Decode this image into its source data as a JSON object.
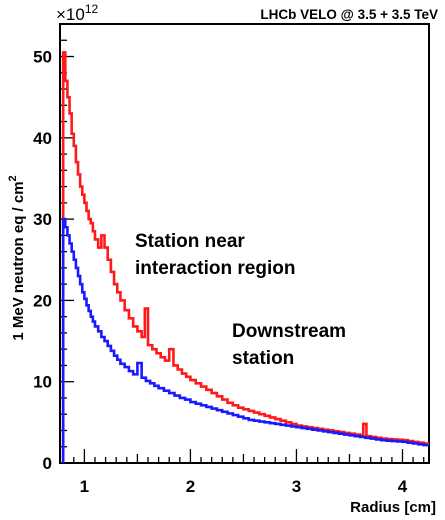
{
  "chart_data": {
    "type": "step-histogram",
    "title": "LHCb VELO @ 3.5 + 3.5 TeV",
    "xlabel": "Radius [cm]",
    "ylabel": "1 MeV neutron eq / cm",
    "ylabel_sup": "2",
    "y_multiplier_base": "×10",
    "y_multiplier_exp": "12",
    "xlim": [
      0.77,
      4.25
    ],
    "ylim": [
      0,
      54
    ],
    "x_ticks": [
      1,
      2,
      3,
      4
    ],
    "y_ticks": [
      0,
      10,
      20,
      30,
      40,
      50
    ],
    "x_tick_labels": [
      "1",
      "2",
      "3",
      "4"
    ],
    "y_tick_labels": [
      "0",
      "10",
      "20",
      "30",
      "40",
      "50"
    ],
    "grid": false,
    "series": [
      {
        "name": "Station near interaction region",
        "color": "#ff1a1a",
        "points": [
          [
            0.8,
            50.5
          ],
          [
            0.82,
            47
          ],
          [
            0.84,
            45
          ],
          [
            0.86,
            43
          ],
          [
            0.88,
            40.5
          ],
          [
            0.9,
            39
          ],
          [
            0.92,
            37
          ],
          [
            0.94,
            35.5
          ],
          [
            0.96,
            34
          ],
          [
            0.98,
            33
          ],
          [
            1.0,
            32
          ],
          [
            1.02,
            31
          ],
          [
            1.04,
            30
          ],
          [
            1.06,
            29.5
          ],
          [
            1.08,
            28.5
          ],
          [
            1.1,
            27.5
          ],
          [
            1.13,
            26.5
          ],
          [
            1.16,
            28
          ],
          [
            1.19,
            26.5
          ],
          [
            1.22,
            25
          ],
          [
            1.25,
            23.5
          ],
          [
            1.28,
            22
          ],
          [
            1.31,
            21
          ],
          [
            1.34,
            20
          ],
          [
            1.38,
            18.8
          ],
          [
            1.42,
            17.8
          ],
          [
            1.46,
            16.8
          ],
          [
            1.5,
            16.2
          ],
          [
            1.54,
            15.5
          ],
          [
            1.57,
            19
          ],
          [
            1.6,
            14.5
          ],
          [
            1.64,
            14
          ],
          [
            1.68,
            13.5
          ],
          [
            1.72,
            13
          ],
          [
            1.76,
            12.6
          ],
          [
            1.8,
            14
          ],
          [
            1.84,
            12
          ],
          [
            1.88,
            11.5
          ],
          [
            1.92,
            11
          ],
          [
            1.96,
            10.6
          ],
          [
            2.0,
            10.2
          ],
          [
            2.05,
            9.8
          ],
          [
            2.1,
            9.4
          ],
          [
            2.15,
            9
          ],
          [
            2.2,
            8.6
          ],
          [
            2.25,
            8.2
          ],
          [
            2.3,
            7.8
          ],
          [
            2.35,
            7.4
          ],
          [
            2.4,
            7.1
          ],
          [
            2.45,
            6.8
          ],
          [
            2.5,
            6.6
          ],
          [
            2.55,
            6.4
          ],
          [
            2.6,
            6.2
          ],
          [
            2.65,
            6
          ],
          [
            2.7,
            5.8
          ],
          [
            2.75,
            5.6
          ],
          [
            2.8,
            5.4
          ],
          [
            2.85,
            5.2
          ],
          [
            2.9,
            5
          ],
          [
            2.95,
            4.8
          ],
          [
            3.0,
            4.6
          ],
          [
            3.05,
            4.5
          ],
          [
            3.1,
            4.4
          ],
          [
            3.15,
            4.3
          ],
          [
            3.2,
            4.2
          ],
          [
            3.25,
            4.1
          ],
          [
            3.3,
            4
          ],
          [
            3.35,
            3.9
          ],
          [
            3.4,
            3.8
          ],
          [
            3.45,
            3.7
          ],
          [
            3.5,
            3.6
          ],
          [
            3.55,
            3.5
          ],
          [
            3.6,
            3.4
          ],
          [
            3.63,
            4.8
          ],
          [
            3.66,
            3.3
          ],
          [
            3.7,
            3.2
          ],
          [
            3.75,
            3.1
          ],
          [
            3.8,
            3
          ],
          [
            3.85,
            2.95
          ],
          [
            3.9,
            2.9
          ],
          [
            3.95,
            2.85
          ],
          [
            4.0,
            2.8
          ],
          [
            4.05,
            2.7
          ],
          [
            4.1,
            2.6
          ],
          [
            4.15,
            2.5
          ],
          [
            4.2,
            2.4
          ]
        ]
      },
      {
        "name": "Downstream station",
        "color": "#1a1aff",
        "points": [
          [
            0.8,
            30
          ],
          [
            0.82,
            29
          ],
          [
            0.84,
            28
          ],
          [
            0.86,
            27
          ],
          [
            0.88,
            26
          ],
          [
            0.9,
            25
          ],
          [
            0.92,
            24
          ],
          [
            0.94,
            23
          ],
          [
            0.96,
            22
          ],
          [
            0.98,
            21
          ],
          [
            1.0,
            20.2
          ],
          [
            1.02,
            19.4
          ],
          [
            1.04,
            18.7
          ],
          [
            1.06,
            18
          ],
          [
            1.08,
            17.4
          ],
          [
            1.1,
            16.8
          ],
          [
            1.13,
            16.2
          ],
          [
            1.16,
            15.5
          ],
          [
            1.19,
            15
          ],
          [
            1.22,
            14.4
          ],
          [
            1.25,
            13.8
          ],
          [
            1.28,
            13.2
          ],
          [
            1.31,
            12.7
          ],
          [
            1.34,
            12.2
          ],
          [
            1.38,
            11.8
          ],
          [
            1.42,
            11.3
          ],
          [
            1.46,
            10.9
          ],
          [
            1.5,
            12.3
          ],
          [
            1.54,
            10.5
          ],
          [
            1.58,
            10.1
          ],
          [
            1.62,
            9.8
          ],
          [
            1.66,
            9.5
          ],
          [
            1.7,
            9.2
          ],
          [
            1.75,
            8.9
          ],
          [
            1.8,
            8.6
          ],
          [
            1.85,
            8.3
          ],
          [
            1.9,
            8
          ],
          [
            1.95,
            7.8
          ],
          [
            2.0,
            7.5
          ],
          [
            2.05,
            7.3
          ],
          [
            2.1,
            7.1
          ],
          [
            2.15,
            6.9
          ],
          [
            2.2,
            6.7
          ],
          [
            2.25,
            6.5
          ],
          [
            2.3,
            6.3
          ],
          [
            2.35,
            6.1
          ],
          [
            2.4,
            5.9
          ],
          [
            2.45,
            5.7
          ],
          [
            2.5,
            5.5
          ],
          [
            2.55,
            5.3
          ],
          [
            2.6,
            5.2
          ],
          [
            2.65,
            5.1
          ],
          [
            2.7,
            5
          ],
          [
            2.75,
            4.9
          ],
          [
            2.8,
            4.8
          ],
          [
            2.85,
            4.7
          ],
          [
            2.9,
            4.6
          ],
          [
            2.95,
            4.5
          ],
          [
            3.0,
            4.4
          ],
          [
            3.05,
            4.3
          ],
          [
            3.1,
            4.2
          ],
          [
            3.15,
            4.1
          ],
          [
            3.2,
            4
          ],
          [
            3.25,
            3.9
          ],
          [
            3.3,
            3.8
          ],
          [
            3.35,
            3.7
          ],
          [
            3.4,
            3.6
          ],
          [
            3.45,
            3.5
          ],
          [
            3.5,
            3.4
          ],
          [
            3.55,
            3.3
          ],
          [
            3.6,
            3.2
          ],
          [
            3.65,
            3.1
          ],
          [
            3.7,
            3
          ],
          [
            3.75,
            2.9
          ],
          [
            3.8,
            2.8
          ],
          [
            3.85,
            2.75
          ],
          [
            3.9,
            2.7
          ],
          [
            3.95,
            2.65
          ],
          [
            4.0,
            2.6
          ],
          [
            4.05,
            2.5
          ],
          [
            4.1,
            2.4
          ],
          [
            4.15,
            2.3
          ],
          [
            4.2,
            2.2
          ]
        ]
      }
    ],
    "annotations": [
      {
        "line1": "Station near",
        "line2": "interaction region",
        "color": "#ff1a1a"
      },
      {
        "line1": "Downstream",
        "line2": "station",
        "color": "#1a1aff"
      }
    ]
  }
}
